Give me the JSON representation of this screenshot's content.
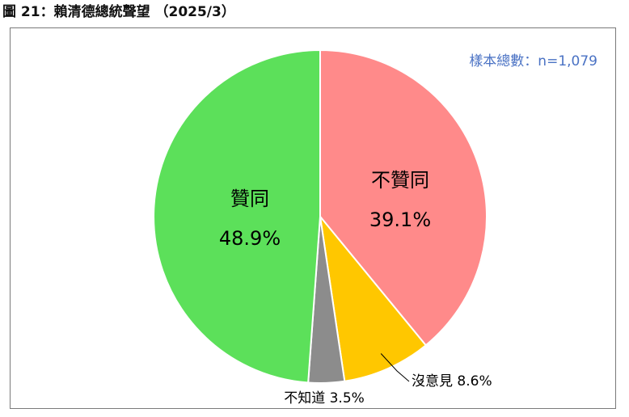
{
  "figure_title": "圖 21：賴清德總統聲望 （2025/3）",
  "sample_note": "樣本總數：n=1,079",
  "colors": {
    "approve": "#5ce05a",
    "disapprove": "#ff8a8a",
    "no_opinion": "#ffc700",
    "dont_know": "#8c8c8c",
    "note": "#4a72c4",
    "leader": "#000000"
  },
  "chart_data": {
    "type": "pie",
    "title": "賴清德總統聲望 （2025/3）",
    "n": "1,079",
    "start_angle": "12 o'clock",
    "direction": "clockwise",
    "slices": [
      {
        "label": "不贊同",
        "value": 39.1,
        "value_text": "39.1%",
        "color": "#ff8a8a",
        "label_position": "inside"
      },
      {
        "label": "沒意見",
        "value": 8.6,
        "value_text": "8.6%",
        "color": "#ffc700",
        "label_position": "outside"
      },
      {
        "label": "不知道",
        "value": 3.5,
        "value_text": "3.5%",
        "color": "#8c8c8c",
        "label_position": "outside"
      },
      {
        "label": "贊同",
        "value": 48.9,
        "value_text": "48.9%",
        "color": "#5ce05a",
        "label_position": "inside"
      }
    ]
  }
}
